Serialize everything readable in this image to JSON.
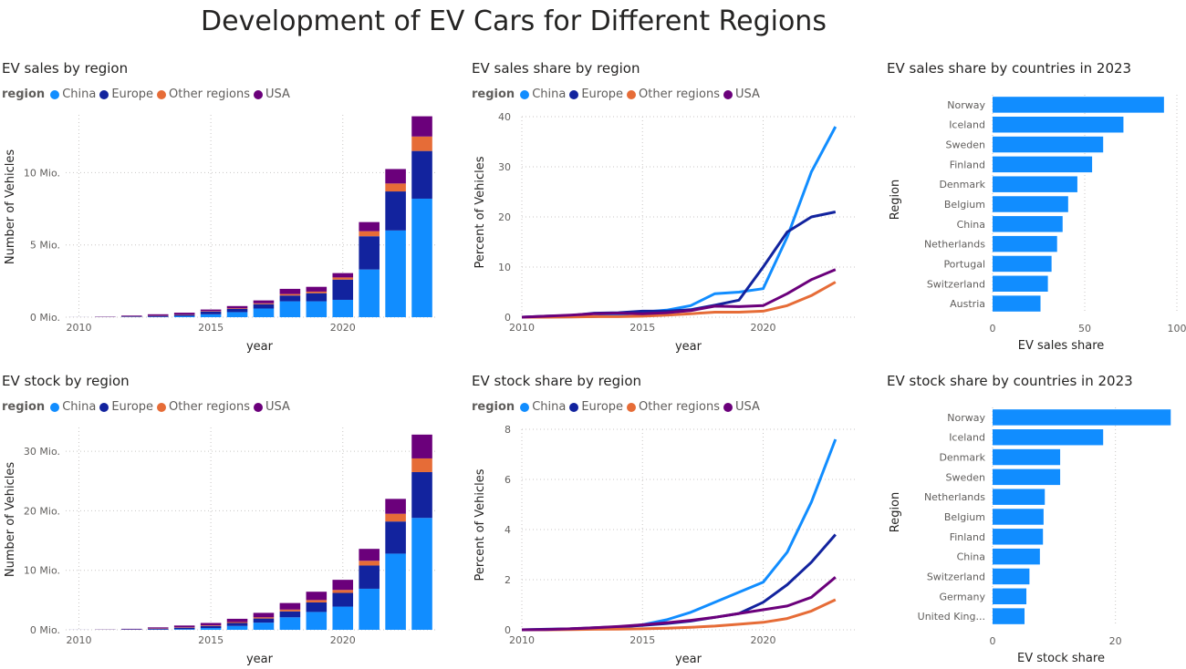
{
  "page": {
    "title": "Development of EV Cars for Different Regions"
  },
  "colors": {
    "China": "#118dff",
    "Europe": "#12239e",
    "Other regions": "#e66c37",
    "USA": "#6b007b",
    "hbar": "#118dff",
    "text": "#605e5c",
    "grid": "#c8c6c4"
  },
  "legend": {
    "title": "region",
    "items": [
      "China",
      "Europe",
      "Other regions",
      "USA"
    ]
  },
  "chart_data": [
    {
      "id": "sales_by_region",
      "type": "bar",
      "stacked": true,
      "title": "EV sales by region",
      "xlabel": "year",
      "ylabel": "Number of Vehicles",
      "categories": [
        2010,
        2011,
        2012,
        2013,
        2014,
        2015,
        2016,
        2017,
        2018,
        2019,
        2020,
        2021,
        2022,
        2023
      ],
      "xticks": [
        2010,
        2015,
        2020
      ],
      "yticks": [
        0,
        5,
        10
      ],
      "ytick_labels": [
        "0 Mio.",
        "5 Mio.",
        "10 Mio."
      ],
      "ylim": [
        0,
        14
      ],
      "series": [
        {
          "name": "China",
          "values": [
            0.001,
            0.005,
            0.01,
            0.015,
            0.07,
            0.2,
            0.35,
            0.6,
            1.1,
            1.1,
            1.2,
            3.3,
            6.0,
            8.2
          ]
        },
        {
          "name": "Europe",
          "values": [
            0.001,
            0.01,
            0.04,
            0.07,
            0.1,
            0.19,
            0.22,
            0.3,
            0.4,
            0.56,
            1.4,
            2.3,
            2.7,
            3.3
          ]
        },
        {
          "name": "Other regions",
          "values": [
            0.0,
            0.005,
            0.01,
            0.015,
            0.02,
            0.03,
            0.04,
            0.06,
            0.1,
            0.11,
            0.15,
            0.35,
            0.55,
            1.0
          ]
        },
        {
          "name": "USA",
          "values": [
            0.002,
            0.018,
            0.05,
            0.1,
            0.12,
            0.11,
            0.16,
            0.2,
            0.36,
            0.33,
            0.3,
            0.63,
            1.0,
            1.4
          ]
        }
      ]
    },
    {
      "id": "sales_share_by_region",
      "type": "line",
      "title": "EV sales share by region",
      "xlabel": "year",
      "ylabel": "Percent of Vehicles",
      "x": [
        2010,
        2011,
        2012,
        2013,
        2014,
        2015,
        2016,
        2017,
        2018,
        2019,
        2020,
        2021,
        2022,
        2023
      ],
      "xticks": [
        2010,
        2015,
        2020
      ],
      "yticks": [
        0,
        10,
        20,
        30,
        40
      ],
      "ylim": [
        0,
        40
      ],
      "series": [
        {
          "name": "China",
          "values": [
            0.0,
            0.04,
            0.08,
            0.1,
            0.4,
            1.0,
            1.4,
            2.3,
            4.7,
            5.0,
            5.7,
            16.0,
            29.0,
            38.0
          ]
        },
        {
          "name": "Europe",
          "values": [
            0.0,
            0.2,
            0.3,
            0.8,
            0.9,
            1.2,
            1.2,
            1.5,
            2.4,
            3.4,
            10.0,
            17.0,
            20.0,
            21.0
          ]
        },
        {
          "name": "Other regions",
          "values": [
            0.0,
            0.0,
            0.05,
            0.1,
            0.1,
            0.2,
            0.4,
            0.7,
            1.0,
            1.0,
            1.2,
            2.3,
            4.3,
            7.0
          ]
        },
        {
          "name": "USA",
          "values": [
            0.0,
            0.2,
            0.4,
            0.7,
            0.8,
            0.7,
            0.9,
            1.3,
            2.2,
            2.1,
            2.3,
            4.7,
            7.5,
            9.5
          ]
        }
      ]
    },
    {
      "id": "sales_share_countries_2023",
      "type": "bar",
      "orientation": "horizontal",
      "title": "EV sales share by countries in 2023",
      "xlabel": "EV sales share",
      "ylabel": "Region",
      "categories": [
        "Norway",
        "Iceland",
        "Sweden",
        "Finland",
        "Denmark",
        "Belgium",
        "China",
        "Netherlands",
        "Portugal",
        "Switzerland",
        "Austria"
      ],
      "values": [
        93,
        71,
        60,
        54,
        46,
        41,
        38,
        35,
        32,
        30,
        26
      ],
      "xticks": [
        0,
        50,
        100
      ],
      "xlim": [
        0,
        100
      ]
    },
    {
      "id": "stock_by_region",
      "type": "bar",
      "stacked": true,
      "title": "EV stock by region",
      "xlabel": "year",
      "ylabel": "Number of Vehicles",
      "categories": [
        2010,
        2011,
        2012,
        2013,
        2014,
        2015,
        2016,
        2017,
        2018,
        2019,
        2020,
        2021,
        2022,
        2023
      ],
      "xticks": [
        2010,
        2015,
        2020
      ],
      "yticks": [
        0,
        10,
        20,
        30
      ],
      "ytick_labels": [
        "0 Mio.",
        "10 Mio.",
        "20 Mio.",
        "30 Mio."
      ],
      "ylim": [
        0,
        34
      ],
      "series": [
        {
          "name": "China",
          "values": [
            0.002,
            0.01,
            0.02,
            0.04,
            0.1,
            0.3,
            0.65,
            1.2,
            2.1,
            3.0,
            3.9,
            6.9,
            12.8,
            18.8
          ]
        },
        {
          "name": "Europe",
          "values": [
            0.005,
            0.02,
            0.06,
            0.15,
            0.25,
            0.35,
            0.5,
            0.7,
            1.0,
            1.6,
            2.3,
            3.9,
            5.4,
            7.7
          ]
        },
        {
          "name": "Other regions",
          "values": [
            0.0,
            0.01,
            0.02,
            0.05,
            0.07,
            0.1,
            0.15,
            0.2,
            0.3,
            0.4,
            0.5,
            0.8,
            1.3,
            2.3
          ]
        },
        {
          "name": "USA",
          "values": [
            0.005,
            0.02,
            0.07,
            0.17,
            0.3,
            0.4,
            0.55,
            0.75,
            1.1,
            1.4,
            1.7,
            2.0,
            2.5,
            4.0
          ]
        }
      ]
    },
    {
      "id": "stock_share_by_region",
      "type": "line",
      "title": "EV stock share by region",
      "xlabel": "year",
      "ylabel": "Percent of Vehicles",
      "x": [
        2010,
        2011,
        2012,
        2013,
        2014,
        2015,
        2016,
        2017,
        2018,
        2019,
        2020,
        2021,
        2022,
        2023
      ],
      "xticks": [
        2010,
        2015,
        2020
      ],
      "yticks": [
        0,
        2,
        4,
        6,
        8
      ],
      "ylim": [
        0,
        8
      ],
      "series": [
        {
          "name": "China",
          "values": [
            0.0,
            0.01,
            0.02,
            0.05,
            0.1,
            0.2,
            0.4,
            0.7,
            1.1,
            1.5,
            1.9,
            3.1,
            5.1,
            7.6
          ]
        },
        {
          "name": "Europe",
          "values": [
            0.0,
            0.02,
            0.04,
            0.08,
            0.12,
            0.18,
            0.25,
            0.35,
            0.5,
            0.65,
            1.1,
            1.8,
            2.7,
            3.8
          ]
        },
        {
          "name": "Other regions",
          "values": [
            0.0,
            0.0,
            0.01,
            0.02,
            0.03,
            0.04,
            0.06,
            0.1,
            0.15,
            0.22,
            0.3,
            0.45,
            0.75,
            1.2
          ]
        },
        {
          "name": "USA",
          "values": [
            0.0,
            0.01,
            0.04,
            0.08,
            0.13,
            0.2,
            0.28,
            0.38,
            0.5,
            0.65,
            0.8,
            0.95,
            1.3,
            2.1
          ]
        }
      ]
    },
    {
      "id": "stock_share_countries_2023",
      "type": "bar",
      "orientation": "horizontal",
      "title": "EV stock share by countries in 2023",
      "xlabel": "EV stock share",
      "ylabel": "Region",
      "categories": [
        "Norway",
        "Iceland",
        "Denmark",
        "Sweden",
        "Netherlands",
        "Belgium",
        "Finland",
        "China",
        "Switzerland",
        "Germany",
        "United King..."
      ],
      "values": [
        29,
        18,
        11,
        11,
        8.5,
        8.3,
        8.2,
        7.7,
        6.0,
        5.5,
        5.2
      ],
      "xticks": [
        0,
        20
      ],
      "xlim": [
        0,
        30
      ]
    }
  ]
}
